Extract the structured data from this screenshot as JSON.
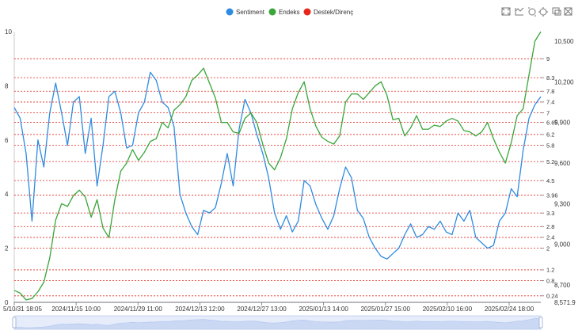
{
  "chart_data": {
    "type": "line",
    "legend": {
      "placement": "top-center",
      "items": [
        {
          "name": "Sentiment",
          "color": "#2f8be0"
        },
        {
          "name": "Endeks",
          "color": "#3aa53a"
        },
        {
          "name": "Destek/Direnç",
          "color": "#e8251c"
        }
      ]
    },
    "x_labels": [
      "5/10/31 18:05",
      "2024/11/15 10:00",
      "2024/11/29 11:00",
      "2024/12/13 12:00",
      "2024/12/27 13:00",
      "2025/01/13 14:00",
      "2025/01/27 15:00",
      "2025/02/10 16:00",
      "2025/02/24 18:00"
    ],
    "y_left": {
      "min": 0,
      "max": 10,
      "ticks": [
        "0",
        "2",
        "4",
        "6",
        "8",
        "10"
      ]
    },
    "y_right": {
      "min": 8571.9,
      "max": 10570,
      "ticks": [
        "10,500",
        "10,200",
        "9,900",
        "9,600",
        "9,300",
        "9,000",
        "8,700",
        "8,571.9"
      ]
    },
    "levels": [
      "9",
      "8.3",
      "7.8",
      "7.4",
      "7",
      "6.65",
      "6.2",
      "5.8",
      "5.2",
      "4.5",
      "3.96",
      "3.3",
      "2.8",
      "2.4",
      "2",
      "1.2",
      "0.8",
      "0.24"
    ],
    "level_color": "#e8251c",
    "series": [
      {
        "name": "Sentiment",
        "color": "#2f8be0",
        "values": [
          7.2,
          6.8,
          5.5,
          3.0,
          6.0,
          5.0,
          7.0,
          8.1,
          7.0,
          5.8,
          7.4,
          7.6,
          5.5,
          6.8,
          4.3,
          5.8,
          7.6,
          7.8,
          7.0,
          5.7,
          5.8,
          7.0,
          7.4,
          8.5,
          8.2,
          7.4,
          7.2,
          6.5,
          4.0,
          3.3,
          2.8,
          2.5,
          3.4,
          3.3,
          3.5,
          4.4,
          5.5,
          4.3,
          6.4,
          7.5,
          7.0,
          6.2,
          5.5,
          4.6,
          3.3,
          2.7,
          3.2,
          2.6,
          3.0,
          4.5,
          4.3,
          3.6,
          3.1,
          2.7,
          3.2,
          4.2,
          5.0,
          4.6,
          3.4,
          3.1,
          2.4,
          2.0,
          1.7,
          1.6,
          1.8,
          2.0,
          2.5,
          2.9,
          2.4,
          2.5,
          2.8,
          2.7,
          3.0,
          2.6,
          2.5,
          3.3,
          3.0,
          3.4,
          2.4,
          2.2,
          2.0,
          2.1,
          3.0,
          3.3,
          4.2,
          3.9,
          5.6,
          6.8,
          7.3,
          7.6
        ]
      },
      {
        "name": "Endeks",
        "color": "#3aa53a",
        "values": [
          8660,
          8640,
          8590,
          8600,
          8650,
          8720,
          8900,
          9180,
          9300,
          9280,
          9360,
          9400,
          9350,
          9200,
          9330,
          9120,
          9050,
          9330,
          9540,
          9600,
          9700,
          9620,
          9680,
          9760,
          9780,
          9900,
          9860,
          9990,
          10030,
          10090,
          10210,
          10250,
          10300,
          10190,
          10080,
          9900,
          9900,
          9830,
          9820,
          9930,
          9970,
          9900,
          9740,
          9600,
          9550,
          9640,
          9780,
          10000,
          10120,
          10200,
          10000,
          9870,
          9790,
          9760,
          9740,
          9800,
          10050,
          10110,
          10110,
          10070,
          10120,
          10170,
          10200,
          10100,
          9920,
          9930,
          9800,
          9860,
          9950,
          9850,
          9850,
          9880,
          9870,
          9910,
          9930,
          9910,
          9840,
          9830,
          9800,
          9830,
          9900,
          9780,
          9680,
          9600,
          9750,
          9950,
          10000,
          10250,
          10500,
          10570
        ]
      }
    ]
  },
  "toolbox": [
    "zoom-icon",
    "zoom-reset-icon",
    "restore-icon",
    "data-view-icon",
    "line-chart-icon",
    "save-image-icon"
  ]
}
